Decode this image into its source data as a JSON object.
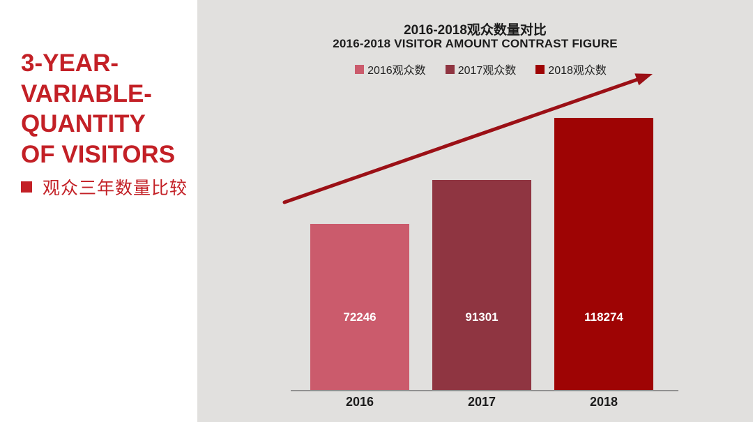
{
  "colors": {
    "background": "#ffffff",
    "panel_bg": "#e1e0de",
    "accent_red": "#c32026",
    "title_text": "#1c1c1c",
    "axis_line": "#919191",
    "arrow": "#9b1016",
    "value_label_text": "#ffffff",
    "year_label_text": "#1c1c1c",
    "legend_text": "#222222"
  },
  "left_panel": {
    "title": "3-YEAR-\nVARIABLE-\nQUANTITY\nOF VISITORS",
    "bullet_icon": "red-square-bullet",
    "subtitle": "观众三年数量比较"
  },
  "chart": {
    "title_zh": "2016-2018观众数量对比",
    "title_en": "2016-2018 VISITOR AMOUNT CONTRAST FIGURE"
  },
  "chart_data": {
    "type": "bar",
    "title": "2016-2018观众数量对比",
    "subtitle": "2016-2018 VISITOR AMOUNT CONTRAST FIGURE",
    "categories": [
      "2016",
      "2017",
      "2018"
    ],
    "values": [
      72246,
      91301,
      118274
    ],
    "series_labels": [
      "2016观众数",
      "2017观众数",
      "2018观众数"
    ],
    "series_colors": [
      "#cb5b6c",
      "#8f3541",
      "#9e0404"
    ],
    "data_labels": true,
    "xlabel": "",
    "ylabel": "",
    "ylim": [
      0,
      120000
    ],
    "grid": false,
    "legend_position": "top",
    "annotation": "dark-red straight arrow rising from above the 2016 bar to the upper right corner, indicating growth trend"
  }
}
